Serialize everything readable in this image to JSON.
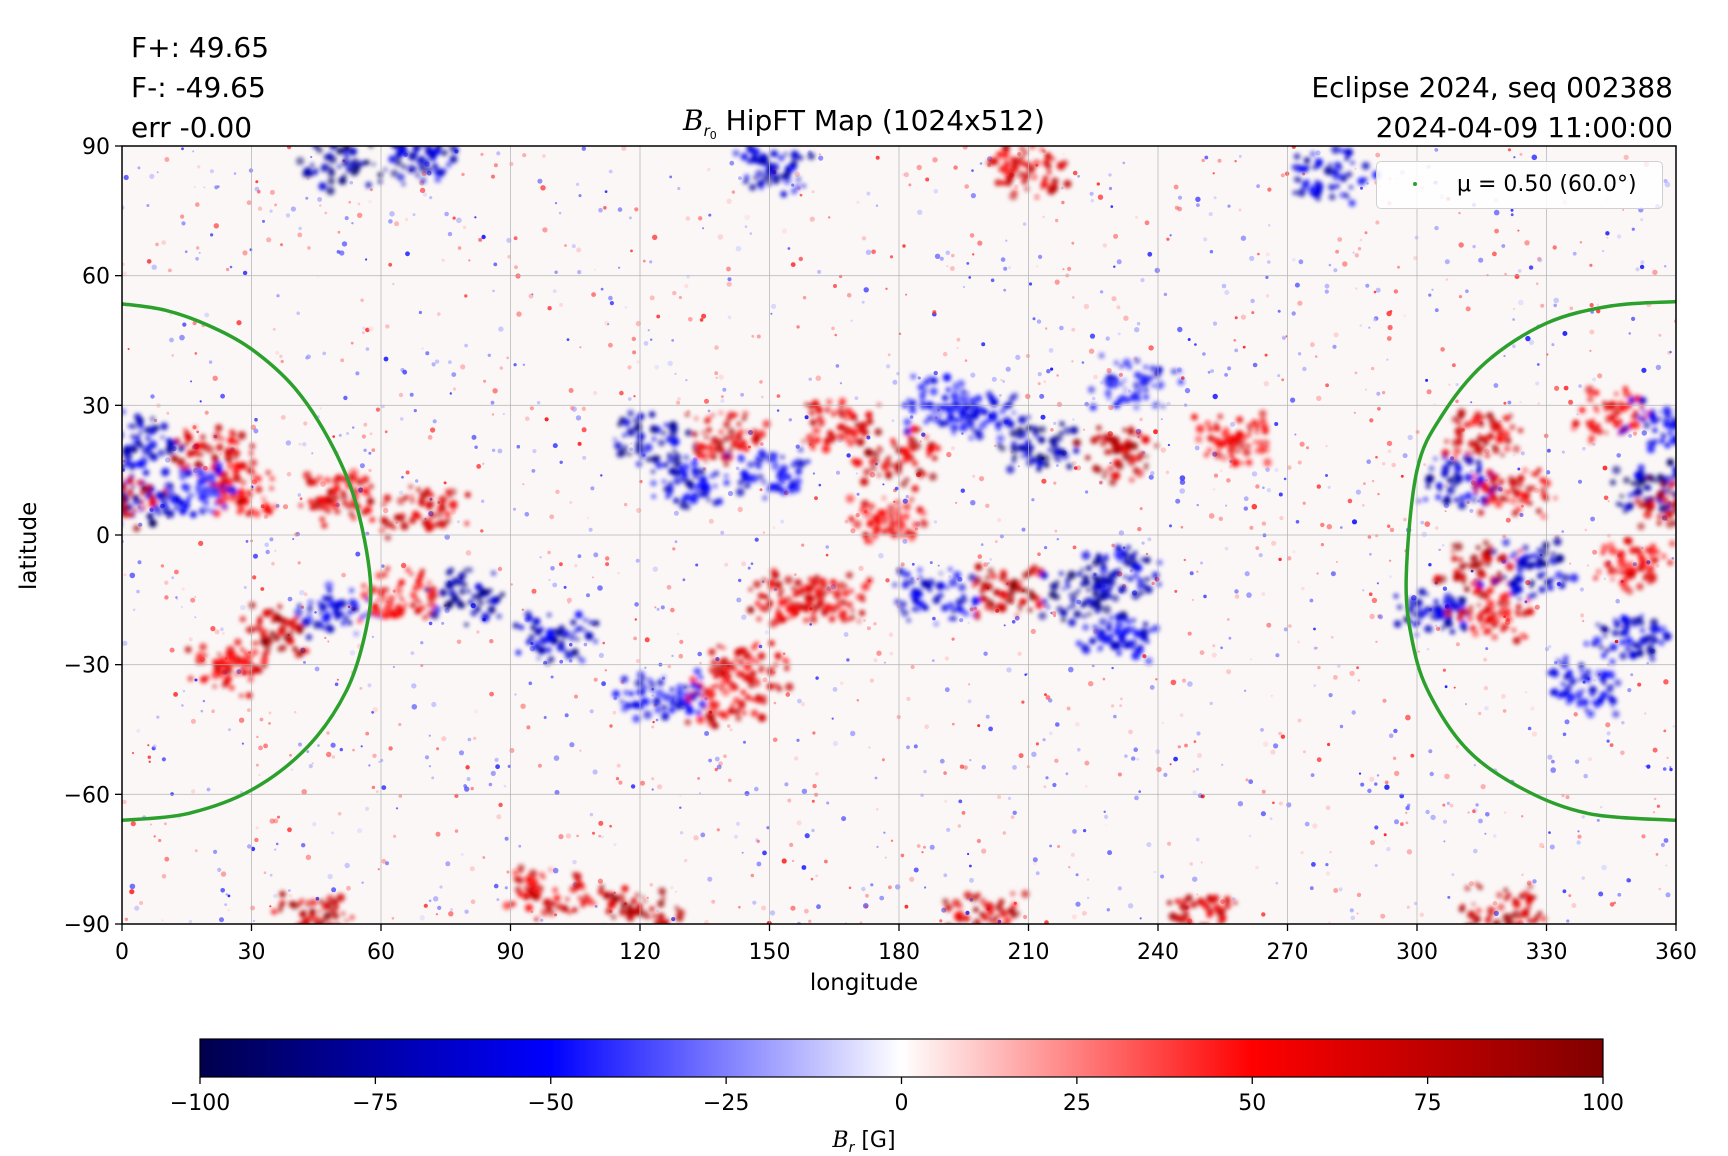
{
  "header": {
    "flux_plus": "F+: 49.65",
    "flux_minus": "F-: -49.65",
    "error": "err -0.00",
    "event": "Eclipse 2024, seq 002388",
    "timestamp": "2024-04-09 11:00:00"
  },
  "chart_data": {
    "type": "heatmap",
    "title_symbol": "B",
    "title_subscript": "r",
    "title_subsub": "0",
    "title_rest": " HipFT Map (1024x512)",
    "xlabel": "longitude",
    "ylabel": "latitude",
    "xlim": [
      0,
      360
    ],
    "ylim": [
      -90,
      90
    ],
    "xticks": [
      0,
      30,
      60,
      90,
      120,
      150,
      180,
      210,
      240,
      270,
      300,
      330,
      360
    ],
    "yticks": [
      -90,
      -60,
      -30,
      0,
      30,
      60,
      90
    ],
    "grid": true,
    "colormap": "seismic",
    "colorbar": {
      "label_symbol": "B",
      "label_subscript": "r",
      "label_unit": " [G]",
      "range": [
        -100,
        100
      ],
      "ticks": [
        -100,
        -75,
        -50,
        -25,
        0,
        25,
        50,
        75,
        100
      ],
      "tick_labels": [
        "−100",
        "−75",
        "−50",
        "−25",
        "0",
        "25",
        "50",
        "75",
        "100"
      ]
    },
    "legend": {
      "label": "μ = 0.50 (60.0°)",
      "placement": "upper right",
      "marker_color": "#2ca02c"
    },
    "contour_color": "#2ca02c",
    "mu_contour_left": [
      [
        0,
        53.5
      ],
      [
        10,
        52
      ],
      [
        20,
        48.5
      ],
      [
        30,
        43
      ],
      [
        40,
        34
      ],
      [
        48,
        22
      ],
      [
        54,
        8
      ],
      [
        57.5,
        -10
      ],
      [
        56.5,
        -22
      ],
      [
        52,
        -36
      ],
      [
        43,
        -49
      ],
      [
        30,
        -59
      ],
      [
        15,
        -64.5
      ],
      [
        0,
        -66
      ]
    ],
    "mu_contour_right": [
      [
        360,
        54
      ],
      [
        345,
        53
      ],
      [
        330,
        49
      ],
      [
        316,
        40
      ],
      [
        306,
        28
      ],
      [
        300,
        15
      ],
      [
        297.5,
        -10
      ],
      [
        299,
        -25
      ],
      [
        303,
        -37
      ],
      [
        312,
        -50
      ],
      [
        325,
        -59
      ],
      [
        340,
        -64.5
      ],
      [
        360,
        -66
      ]
    ],
    "active_regions": [
      {
        "lon": 20,
        "lat": 19,
        "value": 90
      },
      {
        "lon": 5,
        "lat": 22,
        "value": -80
      },
      {
        "lon": 3,
        "lat": 9,
        "value": -95
      },
      {
        "lon": 0,
        "lat": 8,
        "value": 100
      },
      {
        "lon": 28,
        "lat": 10,
        "value": 70
      },
      {
        "lon": 18,
        "lat": 10,
        "value": -60
      },
      {
        "lon": 50,
        "lat": 9,
        "value": 80
      },
      {
        "lon": 70,
        "lat": 6,
        "value": 85
      },
      {
        "lon": 35,
        "lat": -22,
        "value": 95
      },
      {
        "lon": 25,
        "lat": -31,
        "value": 75
      },
      {
        "lon": 50,
        "lat": -18,
        "value": -75
      },
      {
        "lon": 64,
        "lat": -14,
        "value": 70
      },
      {
        "lon": 80,
        "lat": -14,
        "value": -95
      },
      {
        "lon": 100,
        "lat": -24,
        "value": -85
      },
      {
        "lon": 122,
        "lat": 22,
        "value": -90
      },
      {
        "lon": 140,
        "lat": 22,
        "value": 85
      },
      {
        "lon": 132,
        "lat": 12,
        "value": -80
      },
      {
        "lon": 150,
        "lat": 14,
        "value": -70
      },
      {
        "lon": 165,
        "lat": 25,
        "value": 80
      },
      {
        "lon": 180,
        "lat": 18,
        "value": 90
      },
      {
        "lon": 178,
        "lat": 4,
        "value": 70
      },
      {
        "lon": 190,
        "lat": 30,
        "value": -60
      },
      {
        "lon": 212,
        "lat": 21,
        "value": -100
      },
      {
        "lon": 231,
        "lat": 19,
        "value": 100
      },
      {
        "lon": 200,
        "lat": 28,
        "value": -70
      },
      {
        "lon": 205,
        "lat": -13,
        "value": 100
      },
      {
        "lon": 222,
        "lat": -14,
        "value": -100
      },
      {
        "lon": 232,
        "lat": -8,
        "value": -85
      },
      {
        "lon": 188,
        "lat": -14,
        "value": -75
      },
      {
        "lon": 155,
        "lat": -15,
        "value": 85
      },
      {
        "lon": 165,
        "lat": -15,
        "value": 80
      },
      {
        "lon": 145,
        "lat": -30,
        "value": 75
      },
      {
        "lon": 140,
        "lat": -38,
        "value": 80
      },
      {
        "lon": 125,
        "lat": -37,
        "value": -70
      },
      {
        "lon": 230,
        "lat": -24,
        "value": -70
      },
      {
        "lon": 235,
        "lat": 35,
        "value": -65
      },
      {
        "lon": 258,
        "lat": 22,
        "value": 70
      },
      {
        "lon": 315,
        "lat": 23,
        "value": 85
      },
      {
        "lon": 310,
        "lat": 12,
        "value": -85
      },
      {
        "lon": 322,
        "lat": 10,
        "value": 80
      },
      {
        "lon": 355,
        "lat": 10,
        "value": -100
      },
      {
        "lon": 360,
        "lat": 8,
        "value": 100
      },
      {
        "lon": 315,
        "lat": -8,
        "value": 100
      },
      {
        "lon": 328,
        "lat": -8,
        "value": -90
      },
      {
        "lon": 305,
        "lat": -18,
        "value": -85
      },
      {
        "lon": 318,
        "lat": -18,
        "value": 75
      },
      {
        "lon": 350,
        "lat": -23,
        "value": -80
      },
      {
        "lon": 340,
        "lat": -35,
        "value": -70
      },
      {
        "lon": 350,
        "lat": -7,
        "value": 70
      },
      {
        "lon": 345,
        "lat": 28,
        "value": 70
      },
      {
        "lon": 358,
        "lat": 26,
        "value": -70
      },
      {
        "lon": 50,
        "lat": 86,
        "value": -100
      },
      {
        "lon": 70,
        "lat": 87,
        "value": -90
      },
      {
        "lon": 210,
        "lat": 84,
        "value": 80
      },
      {
        "lon": 150,
        "lat": 85,
        "value": -85
      },
      {
        "lon": 280,
        "lat": 83,
        "value": -80
      },
      {
        "lon": 120,
        "lat": -87,
        "value": 100
      },
      {
        "lon": 200,
        "lat": -89,
        "value": 90
      },
      {
        "lon": 250,
        "lat": -89,
        "value": 85
      },
      {
        "lon": 320,
        "lat": -87,
        "value": 90
      },
      {
        "lon": 45,
        "lat": -88,
        "value": 95
      },
      {
        "lon": 100,
        "lat": -83,
        "value": 80
      }
    ]
  }
}
